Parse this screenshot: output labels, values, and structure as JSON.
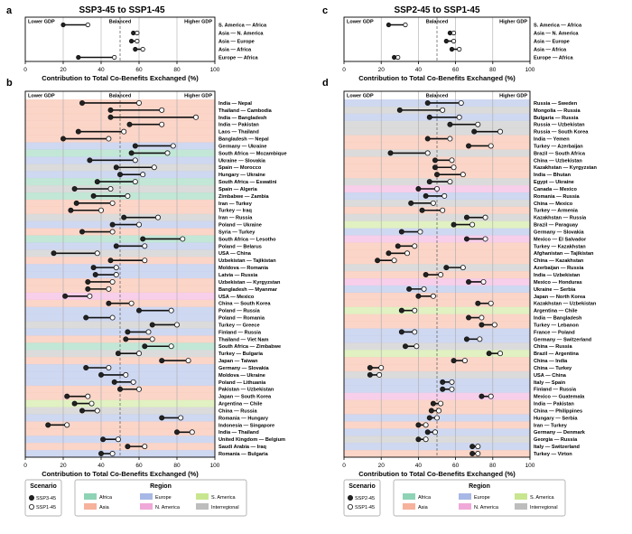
{
  "region_colors": {
    "Africa": "#8fd3b6",
    "Asia": "#f6b29b",
    "Europe": "#a8b8e6",
    "N. America": "#f0a8d8",
    "S. America": "#c8e690",
    "Interregional": "#bdbdbd"
  },
  "scenario_colors": {
    "SSP3-45": "#222222",
    "SSP2-45": "#222222",
    "SSP1-45": "#ffffff"
  },
  "panel_a": {
    "letter": "a",
    "title": "SSP3-45 to SSP1-45",
    "lower_label": "Lower GDP",
    "balanced_label": "Balanced",
    "higher_label": "Higher GDP",
    "xlabel": "Contribution to Total Co-Benefits Exchanged (%)"
  },
  "panel_b": {
    "letter": "b",
    "lower_label": "Lower GDP",
    "balanced_label": "Balanced",
    "higher_label": "Higher GDP",
    "xlabel": "Contribution to Total Co-Benefits Exchanged (%)"
  },
  "panel_c": {
    "letter": "c",
    "title": "SSP2-45 to SSP1-45",
    "lower_label": "Lower GDP",
    "balanced_label": "Balanced",
    "higher_label": "Higher GDP",
    "xlabel": "Contribution to Total Co-Benefits Exchanged (%)"
  },
  "panel_d": {
    "letter": "d",
    "lower_label": "Lower GDP",
    "balanced_label": "Balanced",
    "higher_label": "Higher GDP",
    "xlabel": "Contribution to Total Co-Benefits Exchanged (%)"
  },
  "legend_left": {
    "scenario_title": "Scenario",
    "scenarios": [
      "SSP3-45",
      "SSP1-45"
    ],
    "region_title": "Region",
    "regions": [
      "Africa",
      "Europe",
      "S. America",
      "Asia",
      "N. America",
      "Interregional"
    ]
  },
  "legend_right": {
    "scenario_title": "Scenario",
    "scenarios": [
      "SSP2-45",
      "SSP1-45"
    ],
    "region_title": "Region",
    "regions": [
      "Africa",
      "Europe",
      "S. America",
      "Asia",
      "N. America",
      "Interregional"
    ]
  },
  "chart_data": [
    {
      "panel": "a",
      "type": "dumbbell",
      "title": "SSP3-45 to SSP1-45",
      "xlabel": "Contribution to Total Co-Benefits Exchanged (%)",
      "xlim": [
        0,
        100
      ],
      "xticks": [
        0,
        20,
        40,
        60,
        80,
        100
      ],
      "balanced": 50,
      "series_names": [
        "SSP3-45",
        "SSP1-45"
      ],
      "rows": [
        {
          "pair": "S. America — Africa",
          "region": "Interregional",
          "SSP3-45": 20,
          "SSP1-45": 33
        },
        {
          "pair": "Asia — N. America",
          "region": "Interregional",
          "SSP3-45": 57,
          "SSP1-45": 59
        },
        {
          "pair": "Asia — Europe",
          "region": "Interregional",
          "SSP3-45": 56,
          "SSP1-45": 59
        },
        {
          "pair": "Asia — Africa",
          "region": "Interregional",
          "SSP3-45": 58,
          "SSP1-45": 62
        },
        {
          "pair": "Europe — Africa",
          "region": "Interregional",
          "SSP3-45": 28,
          "SSP1-45": 47
        }
      ]
    },
    {
      "panel": "b",
      "type": "dumbbell",
      "xlabel": "Contribution to Total Co-Benefits Exchanged (%)",
      "xlim": [
        0,
        100
      ],
      "xticks": [
        0,
        20,
        40,
        60,
        80,
        100
      ],
      "balanced": 50,
      "series_names": [
        "SSP3-45",
        "SSP1-45"
      ],
      "rows": [
        {
          "pair": "India — Nepal",
          "region": "Asia",
          "SSP3-45": 30,
          "SSP1-45": 60
        },
        {
          "pair": "Thailand — Cambodia",
          "region": "Asia",
          "SSP3-45": 45,
          "SSP1-45": 72
        },
        {
          "pair": "India — Bangladesh",
          "region": "Asia",
          "SSP3-45": 45,
          "SSP1-45": 90
        },
        {
          "pair": "India — Pakistan",
          "region": "Asia",
          "SSP3-45": 55,
          "SSP1-45": 72
        },
        {
          "pair": "Laos — Thailand",
          "region": "Asia",
          "SSP3-45": 28,
          "SSP1-45": 52
        },
        {
          "pair": "Bangladesh — Nepal",
          "region": "Asia",
          "SSP3-45": 20,
          "SSP1-45": 44
        },
        {
          "pair": "Germany — Ukraine",
          "region": "Europe",
          "SSP3-45": 58,
          "SSP1-45": 78
        },
        {
          "pair": "South Africa — Mozambique",
          "region": "Africa",
          "SSP3-45": 56,
          "SSP1-45": 75
        },
        {
          "pair": "Ukraine — Slovakia",
          "region": "Europe",
          "SSP3-45": 34,
          "SSP1-45": 58
        },
        {
          "pair": "Spain — Morocco",
          "region": "Interregional",
          "SSP3-45": 48,
          "SSP1-45": 68
        },
        {
          "pair": "Hungary — Ukraine",
          "region": "Europe",
          "SSP3-45": 50,
          "SSP1-45": 62
        },
        {
          "pair": "South Africa — Eswatini",
          "region": "Africa",
          "SSP3-45": 38,
          "SSP1-45": 58
        },
        {
          "pair": "Spain — Algeria",
          "region": "Interregional",
          "SSP3-45": 26,
          "SSP1-45": 45
        },
        {
          "pair": "Zimbabwe — Zambia",
          "region": "Africa",
          "SSP3-45": 36,
          "SSP1-45": 54
        },
        {
          "pair": "Iran — Turkey",
          "region": "Asia",
          "SSP3-45": 27,
          "SSP1-45": 46
        },
        {
          "pair": "Turkey — Iraq",
          "region": "Asia",
          "SSP3-45": 24,
          "SSP1-45": 40
        },
        {
          "pair": "Iran — Russia",
          "region": "Interregional",
          "SSP3-45": 52,
          "SSP1-45": 70
        },
        {
          "pair": "Poland — Ukraine",
          "region": "Europe",
          "SSP3-45": 46,
          "SSP1-45": 60
        },
        {
          "pair": "Syria — Turkey",
          "region": "Asia",
          "SSP3-45": 30,
          "SSP1-45": 46
        },
        {
          "pair": "South Africa — Lesotho",
          "region": "Africa",
          "SSP3-45": 62,
          "SSP1-45": 83
        },
        {
          "pair": "Poland — Belarus",
          "region": "Europe",
          "SSP3-45": 48,
          "SSP1-45": 63
        },
        {
          "pair": "USA — China",
          "region": "Interregional",
          "SSP3-45": 15,
          "SSP1-45": 38
        },
        {
          "pair": "Uzbekistan — Tajikistan",
          "region": "Asia",
          "SSP3-45": 45,
          "SSP1-45": 63
        },
        {
          "pair": "Moldova — Romania",
          "region": "Europe",
          "SSP3-45": 36,
          "SSP1-45": 48
        },
        {
          "pair": "Latvia — Russia",
          "region": "Europe",
          "SSP3-45": 37,
          "SSP1-45": 48
        },
        {
          "pair": "Uzbekistan — Kyrgyzstan",
          "region": "Asia",
          "SSP3-45": 33,
          "SSP1-45": 46
        },
        {
          "pair": "Bangladesh — Myanmar",
          "region": "Asia",
          "SSP3-45": 33,
          "SSP1-45": 44
        },
        {
          "pair": "USA — Mexico",
          "region": "N. America",
          "SSP3-45": 21,
          "SSP1-45": 34
        },
        {
          "pair": "China — South Korea",
          "region": "Asia",
          "SSP3-45": 44,
          "SSP1-45": 56
        },
        {
          "pair": "Poland — Russia",
          "region": "Europe",
          "SSP3-45": 60,
          "SSP1-45": 77
        },
        {
          "pair": "Poland — Romania",
          "region": "Europe",
          "SSP3-45": 32,
          "SSP1-45": 46
        },
        {
          "pair": "Turkey — Greece",
          "region": "Interregional",
          "SSP3-45": 67,
          "SSP1-45": 80
        },
        {
          "pair": "Finland — Russia",
          "region": "Europe",
          "SSP3-45": 54,
          "SSP1-45": 65
        },
        {
          "pair": "Thailand — Viet Nam",
          "region": "Asia",
          "SSP3-45": 53,
          "SSP1-45": 67
        },
        {
          "pair": "South Africa — Zimbabwe",
          "region": "Africa",
          "SSP3-45": 63,
          "SSP1-45": 77
        },
        {
          "pair": "Turkey — Bulgaria",
          "region": "Interregional",
          "SSP3-45": 49,
          "SSP1-45": 60
        },
        {
          "pair": "Japan — Taiwan",
          "region": "Asia",
          "SSP3-45": 72,
          "SSP1-45": 86
        },
        {
          "pair": "Germany — Slovakia",
          "region": "Europe",
          "SSP3-45": 32,
          "SSP1-45": 44
        },
        {
          "pair": "Moldova — Ukraine",
          "region": "Europe",
          "SSP3-45": 40,
          "SSP1-45": 53
        },
        {
          "pair": "Poland — Lithuania",
          "region": "Europe",
          "SSP3-45": 47,
          "SSP1-45": 57
        },
        {
          "pair": "Pakistan — Uzbekistan",
          "region": "Asia",
          "SSP3-45": 50,
          "SSP1-45": 60
        },
        {
          "pair": "Japan — South Korea",
          "region": "Asia",
          "SSP3-45": 22,
          "SSP1-45": 33
        },
        {
          "pair": "Argentina — Chile",
          "region": "S. America",
          "SSP3-45": 26,
          "SSP1-45": 35
        },
        {
          "pair": "China — Russia",
          "region": "Interregional",
          "SSP3-45": 30,
          "SSP1-45": 38
        },
        {
          "pair": "Romania — Hungary",
          "region": "Europe",
          "SSP3-45": 72,
          "SSP1-45": 82
        },
        {
          "pair": "Indonesia — Singapore",
          "region": "Asia",
          "SSP3-45": 12,
          "SSP1-45": 22
        },
        {
          "pair": "India — Thailand",
          "region": "Asia",
          "SSP3-45": 80,
          "SSP1-45": 88
        },
        {
          "pair": "United Kingdom — Belgium",
          "region": "Europe",
          "SSP3-45": 41,
          "SSP1-45": 49
        },
        {
          "pair": "Saudi Arabia — Iraq",
          "region": "Asia",
          "SSP3-45": 54,
          "SSP1-45": 63
        },
        {
          "pair": "Romania — Bulgaria",
          "region": "Europe",
          "SSP3-45": 40,
          "SSP1-45": 46
        }
      ]
    },
    {
      "panel": "c",
      "type": "dumbbell",
      "title": "SSP2-45 to SSP1-45",
      "xlabel": "Contribution to Total Co-Benefits Exchanged (%)",
      "xlim": [
        0,
        100
      ],
      "xticks": [
        0,
        20,
        40,
        60,
        80,
        100
      ],
      "balanced": 50,
      "series_names": [
        "SSP2-45",
        "SSP1-45"
      ],
      "rows": [
        {
          "pair": "S. America — Africa",
          "region": "Interregional",
          "SSP2-45": 24,
          "SSP1-45": 33
        },
        {
          "pair": "Asia — N. America",
          "region": "Interregional",
          "SSP2-45": 57,
          "SSP1-45": 59
        },
        {
          "pair": "Asia — Europe",
          "region": "Interregional",
          "SSP2-45": 55,
          "SSP1-45": 59
        },
        {
          "pair": "Asia — Africa",
          "region": "Interregional",
          "SSP2-45": 58,
          "SSP1-45": 62
        },
        {
          "pair": "Europe — Africa",
          "region": "Interregional",
          "SSP2-45": 27,
          "SSP1-45": 29
        }
      ]
    },
    {
      "panel": "d",
      "type": "dumbbell",
      "xlabel": "Contribution to Total Co-Benefits Exchanged (%)",
      "xlim": [
        0,
        100
      ],
      "xticks": [
        0,
        20,
        40,
        60,
        80,
        100
      ],
      "balanced": 50,
      "series_names": [
        "SSP2-45",
        "SSP1-45"
      ],
      "rows": [
        {
          "pair": "Russia — Sweden",
          "region": "Europe",
          "SSP2-45": 45,
          "SSP1-45": 63
        },
        {
          "pair": "Mongolia — Russia",
          "region": "Interregional",
          "SSP2-45": 30,
          "SSP1-45": 53
        },
        {
          "pair": "Bulgaria — Russia",
          "region": "Europe",
          "SSP2-45": 46,
          "SSP1-45": 62
        },
        {
          "pair": "Russia — Uzbekistan",
          "region": "Interregional",
          "SSP2-45": 57,
          "SSP1-45": 72
        },
        {
          "pair": "Russia — South Korea",
          "region": "Interregional",
          "SSP2-45": 70,
          "SSP1-45": 84
        },
        {
          "pair": "India — Yemen",
          "region": "Asia",
          "SSP2-45": 45,
          "SSP1-45": 57
        },
        {
          "pair": "Turkey — Azerbaijan",
          "region": "Asia",
          "SSP2-45": 67,
          "SSP1-45": 79
        },
        {
          "pair": "Brazil — South Africa",
          "region": "Interregional",
          "SSP2-45": 25,
          "SSP1-45": 45
        },
        {
          "pair": "China — Uzbekistan",
          "region": "Asia",
          "SSP2-45": 49,
          "SSP1-45": 58
        },
        {
          "pair": "Kazakhstan — Kyrgyzstan",
          "region": "Asia",
          "SSP2-45": 49,
          "SSP1-45": 59
        },
        {
          "pair": "India — Bhutan",
          "region": "Asia",
          "SSP2-45": 50,
          "SSP1-45": 64
        },
        {
          "pair": "Egypt — Ukraine",
          "region": "Interregional",
          "SSP2-45": 46,
          "SSP1-45": 57
        },
        {
          "pair": "Canada — Mexico",
          "region": "N. America",
          "SSP2-45": 40,
          "SSP1-45": 50
        },
        {
          "pair": "Romania — Russia",
          "region": "Europe",
          "SSP2-45": 44,
          "SSP1-45": 54
        },
        {
          "pair": "China — Mexico",
          "region": "Interregional",
          "SSP2-45": 36,
          "SSP1-45": 48
        },
        {
          "pair": "Turkey — Armenia",
          "region": "Asia",
          "SSP2-45": 42,
          "SSP1-45": 53
        },
        {
          "pair": "Kazakhstan — Russia",
          "region": "Interregional",
          "SSP2-45": 66,
          "SSP1-45": 76
        },
        {
          "pair": "Brazil — Paraguay",
          "region": "S. America",
          "SSP2-45": 59,
          "SSP1-45": 69
        },
        {
          "pair": "Germany — Slovakia",
          "region": "Europe",
          "SSP2-45": 31,
          "SSP1-45": 41
        },
        {
          "pair": "Mexico — El Salvador",
          "region": "N. America",
          "SSP2-45": 66,
          "SSP1-45": 76
        },
        {
          "pair": "Turkey — Kazakhstan",
          "region": "Asia",
          "SSP2-45": 29,
          "SSP1-45": 38
        },
        {
          "pair": "Afghanistan — Tajikistan",
          "region": "Asia",
          "SSP2-45": 24,
          "SSP1-45": 34
        },
        {
          "pair": "China — Kazakhstan",
          "region": "Asia",
          "SSP2-45": 18,
          "SSP1-45": 27
        },
        {
          "pair": "Azerbaijan — Russia",
          "region": "Interregional",
          "SSP2-45": 55,
          "SSP1-45": 64
        },
        {
          "pair": "India — Uzbekistan",
          "region": "Asia",
          "SSP2-45": 44,
          "SSP1-45": 52
        },
        {
          "pair": "Mexico — Honduras",
          "region": "N. America",
          "SSP2-45": 67,
          "SSP1-45": 75
        },
        {
          "pair": "Ukraine — Serbia",
          "region": "Europe",
          "SSP2-45": 35,
          "SSP1-45": 43
        },
        {
          "pair": "Japan — North Korea",
          "region": "Asia",
          "SSP2-45": 40,
          "SSP1-45": 48
        },
        {
          "pair": "Kazakhstan — Uzbekistan",
          "region": "Asia",
          "SSP2-45": 72,
          "SSP1-45": 79
        },
        {
          "pair": "Argentina — Chile",
          "region": "S. America",
          "SSP2-45": 31,
          "SSP1-45": 38
        },
        {
          "pair": "India — Bangladesh",
          "region": "Asia",
          "SSP2-45": 67,
          "SSP1-45": 74
        },
        {
          "pair": "Turkey — Lebanon",
          "region": "Asia",
          "SSP2-45": 74,
          "SSP1-45": 81
        },
        {
          "pair": "France — Poland",
          "region": "Europe",
          "SSP2-45": 31,
          "SSP1-45": 38
        },
        {
          "pair": "Germany — Switzerland",
          "region": "Europe",
          "SSP2-45": 66,
          "SSP1-45": 73
        },
        {
          "pair": "China — Russia",
          "region": "Interregional",
          "SSP2-45": 33,
          "SSP1-45": 39
        },
        {
          "pair": "Brazil — Argentina",
          "region": "S. America",
          "SSP2-45": 78,
          "SSP1-45": 84
        },
        {
          "pair": "China — India",
          "region": "Asia",
          "SSP2-45": 59,
          "SSP1-45": 65
        },
        {
          "pair": "China — Turkey",
          "region": "Asia",
          "SSP2-45": 14,
          "SSP1-45": 20
        },
        {
          "pair": "USA — China",
          "region": "Interregional",
          "SSP2-45": 14,
          "SSP1-45": 19
        },
        {
          "pair": "Italy — Spain",
          "region": "Europe",
          "SSP2-45": 53,
          "SSP1-45": 58
        },
        {
          "pair": "Finland — Russia",
          "region": "Europe",
          "SSP2-45": 53,
          "SSP1-45": 58
        },
        {
          "pair": "Mexico — Guatemala",
          "region": "N. America",
          "SSP2-45": 74,
          "SSP1-45": 79
        },
        {
          "pair": "India — Pakistan",
          "region": "Asia",
          "SSP2-45": 48,
          "SSP1-45": 52
        },
        {
          "pair": "China — Philippines",
          "region": "Asia",
          "SSP2-45": 47,
          "SSP1-45": 51
        },
        {
          "pair": "Hungary — Serbia",
          "region": "Europe",
          "SSP2-45": 46,
          "SSP1-45": 50
        },
        {
          "pair": "Iran — Turkey",
          "region": "Asia",
          "SSP2-45": 40,
          "SSP1-45": 44
        },
        {
          "pair": "Germany — Denmark",
          "region": "Europe",
          "SSP2-45": 45,
          "SSP1-45": 49
        },
        {
          "pair": "Georgia — Russia",
          "region": "Interregional",
          "SSP2-45": 40,
          "SSP1-45": 44
        },
        {
          "pair": "Italy — Switzerland",
          "region": "Europe",
          "SSP2-45": 69,
          "SSP1-45": 72
        },
        {
          "pair": "Turkey — Virton",
          "region": "Asia",
          "SSP2-45": 69,
          "SSP1-45": 72
        }
      ]
    }
  ]
}
